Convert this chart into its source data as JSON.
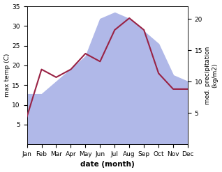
{
  "months": [
    "Jan",
    "Feb",
    "Mar",
    "Apr",
    "May",
    "Jun",
    "Jul",
    "Aug",
    "Sep",
    "Oct",
    "Nov",
    "Dec"
  ],
  "month_indices": [
    0,
    1,
    2,
    3,
    4,
    5,
    6,
    7,
    8,
    9,
    10,
    11
  ],
  "max_temp": [
    7,
    19,
    17,
    19,
    23,
    21,
    29,
    32,
    29,
    18,
    14,
    14
  ],
  "precipitation": [
    8,
    8,
    10,
    12,
    14,
    20,
    21,
    20,
    18,
    16,
    11,
    10
  ],
  "temp_color": "#992244",
  "precip_fill_color": "#b0b8e8",
  "temp_ylim": [
    0,
    35
  ],
  "precip_ylim": [
    0,
    22
  ],
  "temp_yticks": [
    5,
    10,
    15,
    20,
    25,
    30,
    35
  ],
  "precip_yticks": [
    5,
    10,
    15,
    20
  ],
  "xlabel": "date (month)",
  "ylabel_left": "max temp (C)",
  "ylabel_right": "med. precipitation\n(kg/m2)",
  "background_color": "#ffffff",
  "line_width": 1.5,
  "figsize": [
    3.18,
    2.47
  ],
  "dpi": 100
}
